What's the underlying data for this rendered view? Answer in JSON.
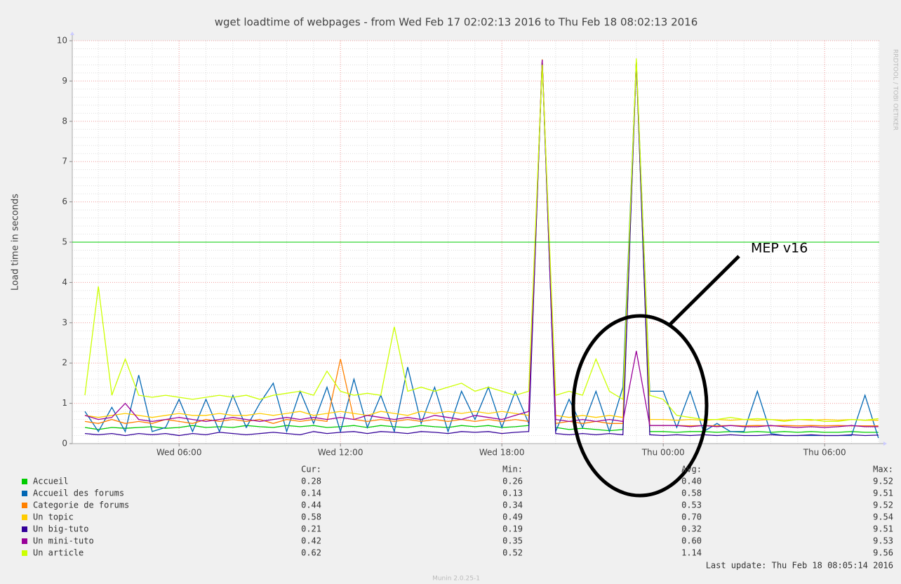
{
  "chart_data": {
    "type": "line",
    "title": "wget loadtime of webpages - from Wed Feb 17 02:02:13 2016 to Thu Feb 18 08:02:13 2016",
    "y_label": "Load time in seconds",
    "side_label": "RRDTOOL / TOBI OETIKER",
    "annotation": "MEP v16",
    "last_update": "Last update:  Thu Feb 18 08:05:14 2016",
    "footer": "Munin 2.0.25-1",
    "xlim": [
      2.03,
      32.03
    ],
    "xticks": [
      {
        "value": 6,
        "label": "Wed 06:00"
      },
      {
        "value": 12,
        "label": "Wed 12:00"
      },
      {
        "value": 18,
        "label": "Wed 18:00"
      },
      {
        "value": 24,
        "label": "Thu 00:00"
      },
      {
        "value": 30,
        "label": "Thu 06:00"
      }
    ],
    "ylim": [
      0,
      10
    ],
    "yticks": [
      0,
      1,
      2,
      3,
      4,
      5,
      6,
      7,
      8,
      9,
      10
    ],
    "grid": true,
    "hline": {
      "value": 5,
      "color": "#00cc00"
    },
    "x": [
      2.5,
      3,
      3.5,
      4,
      4.5,
      5,
      5.5,
      6,
      6.5,
      7,
      7.5,
      8,
      8.5,
      9,
      9.5,
      10,
      10.5,
      11,
      11.5,
      12,
      12.5,
      13,
      13.5,
      14,
      14.5,
      15,
      15.5,
      16,
      16.5,
      17,
      17.5,
      18,
      18.5,
      19,
      19.5,
      20,
      20.5,
      21,
      21.5,
      22,
      22.5,
      23,
      23.5,
      24,
      24.5,
      25,
      25.5,
      26,
      26.5,
      27,
      27.5,
      28,
      28.5,
      29,
      29.5,
      30,
      30.5,
      31,
      31.5,
      32
    ],
    "series": [
      {
        "name": "Accueil",
        "color": "#00cc00",
        "values": [
          0.4,
          0.35,
          0.4,
          0.38,
          0.4,
          0.42,
          0.38,
          0.4,
          0.45,
          0.4,
          0.42,
          0.4,
          0.45,
          0.42,
          0.4,
          0.45,
          0.42,
          0.45,
          0.4,
          0.42,
          0.45,
          0.4,
          0.45,
          0.42,
          0.4,
          0.45,
          0.42,
          0.4,
          0.45,
          0.42,
          0.45,
          0.4,
          0.42,
          0.45,
          9.52,
          0.4,
          0.35,
          0.38,
          0.35,
          0.32,
          0.35,
          9.5,
          0.3,
          0.3,
          0.28,
          0.3,
          0.3,
          0.28,
          0.3,
          0.28,
          0.3,
          0.28,
          0.3,
          0.28,
          0.3,
          0.28,
          0.28,
          0.3,
          0.28,
          0.28
        ]
      },
      {
        "name": "Accueil des forums",
        "color": "#0066b3",
        "values": [
          0.8,
          0.3,
          0.9,
          0.3,
          1.7,
          0.3,
          0.4,
          1.1,
          0.3,
          1.1,
          0.3,
          1.2,
          0.4,
          1.0,
          1.5,
          0.3,
          1.3,
          0.5,
          1.4,
          0.3,
          1.6,
          0.4,
          1.2,
          0.3,
          1.9,
          0.5,
          1.4,
          0.3,
          1.3,
          0.6,
          1.4,
          0.4,
          1.3,
          0.5,
          9.51,
          0.3,
          1.1,
          0.4,
          1.3,
          0.3,
          1.4,
          9.5,
          1.3,
          1.3,
          0.4,
          1.3,
          0.3,
          0.5,
          0.3,
          0.3,
          1.3,
          0.25,
          0.2,
          0.2,
          0.2,
          0.2,
          0.2,
          0.2,
          1.2,
          0.14
        ]
      },
      {
        "name": "Categorie de forums",
        "color": "#ff8000",
        "values": [
          0.55,
          0.5,
          0.6,
          0.5,
          0.55,
          0.5,
          0.6,
          0.55,
          0.5,
          0.6,
          0.55,
          0.6,
          0.55,
          0.6,
          0.5,
          0.6,
          0.55,
          0.6,
          0.55,
          2.1,
          0.6,
          0.55,
          0.6,
          0.55,
          0.6,
          0.55,
          0.6,
          0.55,
          0.6,
          0.55,
          0.6,
          0.55,
          0.6,
          0.55,
          9.52,
          0.5,
          0.55,
          0.5,
          0.55,
          0.5,
          0.5,
          9.5,
          0.45,
          0.45,
          0.45,
          0.44,
          0.45,
          0.44,
          0.45,
          0.44,
          0.45,
          0.44,
          0.45,
          0.44,
          0.45,
          0.44,
          0.45,
          0.44,
          0.44,
          0.44
        ]
      },
      {
        "name": "Un topic",
        "color": "#ffcc00",
        "values": [
          0.7,
          0.65,
          0.7,
          0.75,
          0.7,
          0.65,
          0.7,
          0.75,
          0.7,
          0.7,
          0.75,
          0.7,
          0.7,
          0.75,
          0.7,
          0.75,
          0.8,
          0.7,
          0.75,
          0.8,
          0.75,
          0.7,
          0.8,
          0.75,
          0.7,
          0.8,
          0.75,
          0.8,
          0.75,
          0.8,
          0.75,
          0.8,
          0.75,
          0.7,
          9.54,
          0.7,
          0.65,
          0.7,
          0.65,
          0.7,
          0.65,
          9.5,
          0.6,
          0.6,
          0.58,
          0.6,
          0.58,
          0.6,
          0.58,
          0.6,
          0.58,
          0.6,
          0.58,
          0.6,
          0.58,
          0.6,
          0.58,
          0.6,
          0.58,
          0.58
        ]
      },
      {
        "name": "Un big-tuto",
        "color": "#330099",
        "values": [
          0.25,
          0.22,
          0.25,
          0.2,
          0.25,
          0.22,
          0.25,
          0.2,
          0.25,
          0.22,
          0.28,
          0.25,
          0.22,
          0.25,
          0.28,
          0.25,
          0.22,
          0.3,
          0.25,
          0.28,
          0.3,
          0.25,
          0.3,
          0.28,
          0.25,
          0.3,
          0.28,
          0.25,
          0.3,
          0.28,
          0.3,
          0.25,
          0.28,
          0.3,
          9.51,
          0.25,
          0.22,
          0.25,
          0.22,
          0.25,
          0.22,
          9.5,
          0.22,
          0.2,
          0.22,
          0.2,
          0.22,
          0.2,
          0.22,
          0.2,
          0.2,
          0.22,
          0.2,
          0.2,
          0.22,
          0.2,
          0.2,
          0.22,
          0.2,
          0.21
        ]
      },
      {
        "name": "Un mini-tuto",
        "color": "#990099",
        "values": [
          0.7,
          0.6,
          0.65,
          1.0,
          0.6,
          0.55,
          0.6,
          0.65,
          0.6,
          0.55,
          0.6,
          0.65,
          0.6,
          0.55,
          0.6,
          0.65,
          0.6,
          0.65,
          0.6,
          0.65,
          0.6,
          0.7,
          0.65,
          0.6,
          0.65,
          0.6,
          0.7,
          0.65,
          0.6,
          0.7,
          0.65,
          0.6,
          0.7,
          0.8,
          9.53,
          0.6,
          0.55,
          0.6,
          0.55,
          0.6,
          0.55,
          2.3,
          0.45,
          0.45,
          0.45,
          0.42,
          0.45,
          0.42,
          0.45,
          0.42,
          0.42,
          0.45,
          0.42,
          0.4,
          0.42,
          0.4,
          0.42,
          0.45,
          0.42,
          0.42
        ]
      },
      {
        "name": "Un article",
        "color": "#ccff00",
        "values": [
          1.2,
          3.9,
          1.2,
          2.1,
          1.2,
          1.15,
          1.2,
          1.15,
          1.1,
          1.15,
          1.2,
          1.15,
          1.2,
          1.1,
          1.2,
          1.25,
          1.3,
          1.2,
          1.8,
          1.3,
          1.2,
          1.25,
          1.2,
          2.9,
          1.3,
          1.4,
          1.3,
          1.4,
          1.5,
          1.3,
          1.4,
          1.3,
          1.2,
          1.3,
          9.4,
          1.2,
          1.3,
          1.2,
          2.1,
          1.3,
          1.1,
          9.56,
          1.2,
          1.1,
          0.7,
          0.65,
          0.6,
          0.6,
          0.65,
          0.6,
          0.62,
          0.6,
          0.55,
          0.6,
          0.6,
          0.55,
          0.55,
          0.6,
          0.58,
          0.62
        ]
      }
    ],
    "legend_stats": {
      "headers": [
        "Cur:",
        "Min:",
        "Avg:",
        "Max:"
      ],
      "rows": [
        [
          "0.28",
          "0.26",
          "0.40",
          "9.52"
        ],
        [
          "0.14",
          "0.13",
          "0.58",
          "9.51"
        ],
        [
          "0.44",
          "0.34",
          "0.53",
          "9.52"
        ],
        [
          "0.58",
          "0.49",
          "0.70",
          "9.54"
        ],
        [
          "0.21",
          "0.19",
          "0.32",
          "9.51"
        ],
        [
          "0.42",
          "0.35",
          "0.60",
          "9.53"
        ],
        [
          "0.62",
          "0.52",
          "1.14",
          "9.56"
        ]
      ]
    }
  }
}
